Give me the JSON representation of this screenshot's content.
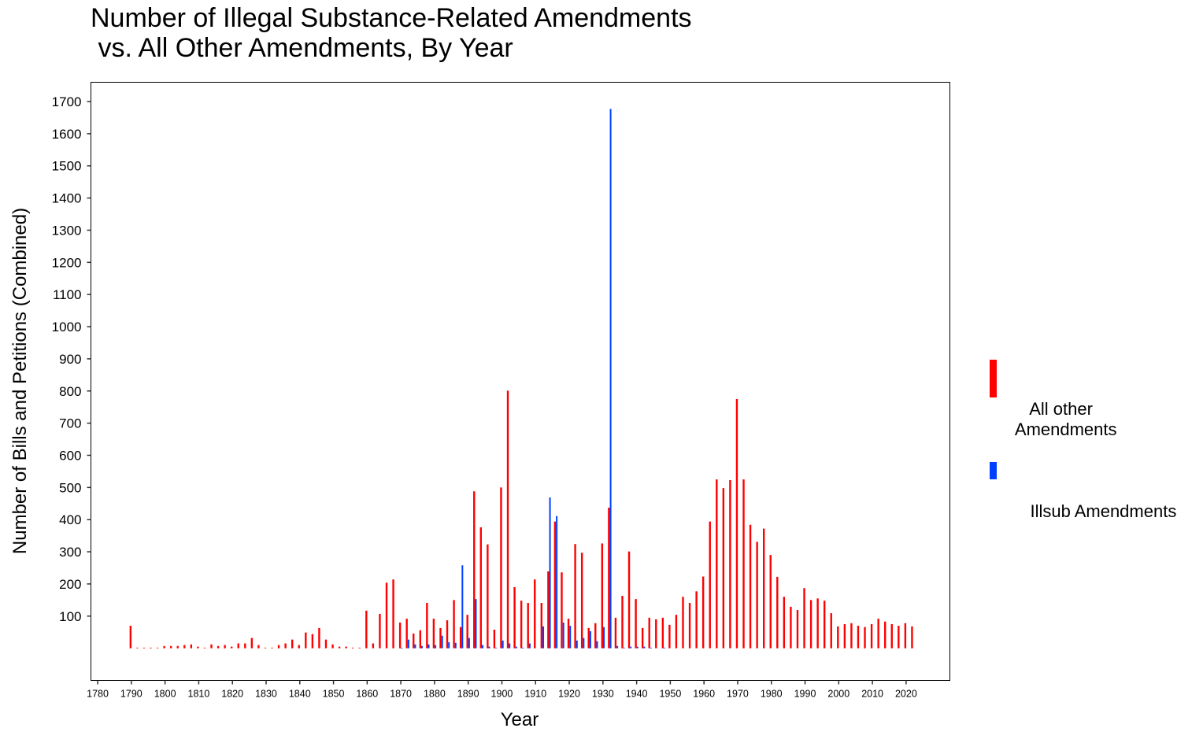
{
  "chart_data": {
    "type": "bar",
    "title": "Number of Illegal Substance-Related Amendments\n vs. All Other Amendments, By Year",
    "xlabel": "Year",
    "ylabel": "Number of Bills and Petitions (Combined)",
    "xlim": [
      1778,
      2033
    ],
    "ylim": [
      -100,
      1760
    ],
    "x_ticks": [
      1780,
      1790,
      1800,
      1810,
      1820,
      1830,
      1840,
      1850,
      1860,
      1870,
      1880,
      1890,
      1900,
      1910,
      1920,
      1930,
      1940,
      1950,
      1960,
      1970,
      1980,
      1990,
      2000,
      2010,
      2020
    ],
    "y_ticks": [
      100,
      200,
      300,
      400,
      500,
      600,
      700,
      800,
      900,
      1000,
      1100,
      1200,
      1300,
      1400,
      1500,
      1600,
      1700
    ],
    "grid": false,
    "legend_placement": "right",
    "x": [
      1790,
      1792,
      1794,
      1796,
      1798,
      1800,
      1802,
      1804,
      1806,
      1808,
      1810,
      1812,
      1814,
      1816,
      1818,
      1820,
      1822,
      1824,
      1826,
      1828,
      1830,
      1832,
      1834,
      1836,
      1838,
      1840,
      1842,
      1844,
      1846,
      1848,
      1850,
      1852,
      1854,
      1856,
      1858,
      1860,
      1862,
      1864,
      1866,
      1868,
      1870,
      1872,
      1874,
      1876,
      1878,
      1880,
      1882,
      1884,
      1886,
      1888,
      1890,
      1892,
      1894,
      1896,
      1898,
      1900,
      1902,
      1904,
      1906,
      1908,
      1910,
      1912,
      1914,
      1916,
      1918,
      1920,
      1922,
      1924,
      1926,
      1928,
      1930,
      1932,
      1934,
      1936,
      1938,
      1940,
      1942,
      1944,
      1946,
      1948,
      1950,
      1952,
      1954,
      1956,
      1958,
      1960,
      1962,
      1964,
      1966,
      1968,
      1970,
      1972,
      1974,
      1976,
      1978,
      1980,
      1982,
      1984,
      1986,
      1988,
      1990,
      1992,
      1994,
      1996,
      1998,
      2000,
      2002,
      2004,
      2006,
      2008,
      2010,
      2012,
      2014,
      2016,
      2018,
      2020,
      2022
    ],
    "series": [
      {
        "name": "All other\n Amendments",
        "color": "#ff0000",
        "values": [
          70,
          2,
          2,
          2,
          2,
          7,
          7,
          7,
          10,
          12,
          5,
          2,
          12,
          7,
          10,
          5,
          15,
          15,
          32,
          10,
          2,
          2,
          10,
          15,
          27,
          10,
          49,
          44,
          63,
          27,
          12,
          5,
          5,
          2,
          2,
          117,
          15,
          107,
          204,
          214,
          80,
          92,
          46,
          56,
          141,
          92,
          63,
          87,
          150,
          66,
          104,
          488,
          376,
          323,
          58,
          500,
          801,
          190,
          148,
          141,
          214,
          141,
          239,
          394,
          236,
          92,
          324,
          297,
          63,
          78,
          326,
          437,
          95,
          163,
          301,
          153,
          63,
          95,
          90,
          95,
          73,
          104,
          160,
          141,
          177,
          223,
          394,
          525,
          498,
          523,
          775,
          525,
          384,
          331,
          372,
          290,
          222,
          160,
          129,
          119,
          187,
          150,
          155,
          148,
          109,
          68,
          75,
          78,
          70,
          66,
          75,
          92,
          83,
          75,
          70,
          78,
          68
        ]
      },
      {
        "name": "Illsub Amendments",
        "color": "#0040ff",
        "values": [
          0,
          0,
          0,
          0,
          0,
          0,
          0,
          0,
          0,
          0,
          0,
          0,
          0,
          0,
          0,
          0,
          0,
          0,
          0,
          0,
          0,
          0,
          0,
          0,
          0,
          0,
          0,
          0,
          0,
          0,
          0,
          0,
          0,
          0,
          0,
          0,
          0,
          0,
          0,
          0,
          1,
          27,
          12,
          7,
          12,
          10,
          39,
          19,
          17,
          258,
          32,
          153,
          10,
          5,
          2,
          24,
          15,
          5,
          2,
          15,
          0,
          68,
          469,
          411,
          80,
          70,
          24,
          32,
          53,
          22,
          66,
          1677,
          7,
          2,
          5,
          5,
          5,
          2,
          0,
          2,
          0,
          0,
          0,
          0,
          0,
          0,
          0,
          0,
          0,
          0,
          0,
          0,
          0,
          0,
          0,
          0,
          0,
          0,
          0,
          0,
          0,
          0,
          0,
          0,
          0,
          0,
          0,
          0,
          0,
          0,
          0,
          0,
          0,
          0,
          0,
          0,
          0
        ]
      }
    ]
  }
}
